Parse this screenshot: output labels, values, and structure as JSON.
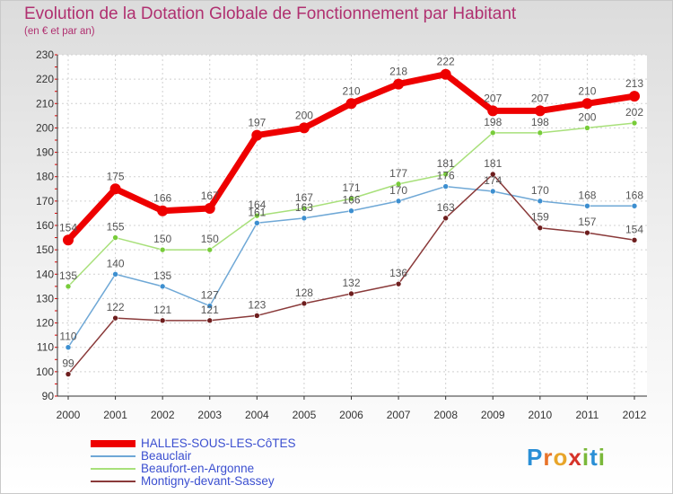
{
  "title": "Evolution de la Dotation Globale de Fonctionnement par Habitant",
  "subtitle": "(en € et par an)",
  "logo": {
    "text": "Proxiti"
  },
  "colors": {
    "title": "#b03070",
    "legend_text": "#3b4fd0",
    "axis": "#333333",
    "grid": "#d0d0d0",
    "tick_mark": "#e00000"
  },
  "chart_data": {
    "type": "line",
    "title": "Evolution de la Dotation Globale de Fonctionnement par Habitant",
    "subtitle": "(en € et par an)",
    "xlabel": "",
    "ylabel": "",
    "ylim": [
      90,
      230
    ],
    "yticks": [
      90,
      100,
      110,
      120,
      130,
      140,
      150,
      160,
      170,
      180,
      190,
      200,
      210,
      220,
      230
    ],
    "grid": true,
    "legend_position": "bottom-left",
    "categories": [
      "2000",
      "2001",
      "2002",
      "2003",
      "2004",
      "2005",
      "2006",
      "2007",
      "2008",
      "2009",
      "2010",
      "2011",
      "2012"
    ],
    "series": [
      {
        "name": "HALLES-SOUS-LES-CôTES",
        "color": "#ee0000",
        "marker_color": "#ee0000",
        "label_color": "#555555",
        "emphasis": true,
        "values": [
          154,
          175,
          166,
          167,
          197,
          200,
          210,
          218,
          222,
          207,
          207,
          210,
          213
        ]
      },
      {
        "name": "Beauclair",
        "color": "#6fa8d6",
        "marker_color": "#3d8fd0",
        "label_color": "#555555",
        "emphasis": false,
        "values": [
          110,
          140,
          135,
          127,
          161,
          163,
          166,
          170,
          176,
          174,
          170,
          168,
          168
        ]
      },
      {
        "name": "Beaufort-en-Argonne",
        "color": "#a8e07a",
        "marker_color": "#78cc3a",
        "label_color": "#555555",
        "emphasis": false,
        "values": [
          135,
          155,
          150,
          150,
          164,
          167,
          171,
          177,
          181,
          198,
          198,
          200,
          202
        ]
      },
      {
        "name": "Montigny-devant-Sassey",
        "color": "#8a3a3a",
        "marker_color": "#6e1e1e",
        "label_color": "#555555",
        "emphasis": false,
        "values": [
          99,
          122,
          121,
          121,
          123,
          128,
          132,
          136,
          163,
          181,
          159,
          157,
          154
        ]
      }
    ]
  }
}
